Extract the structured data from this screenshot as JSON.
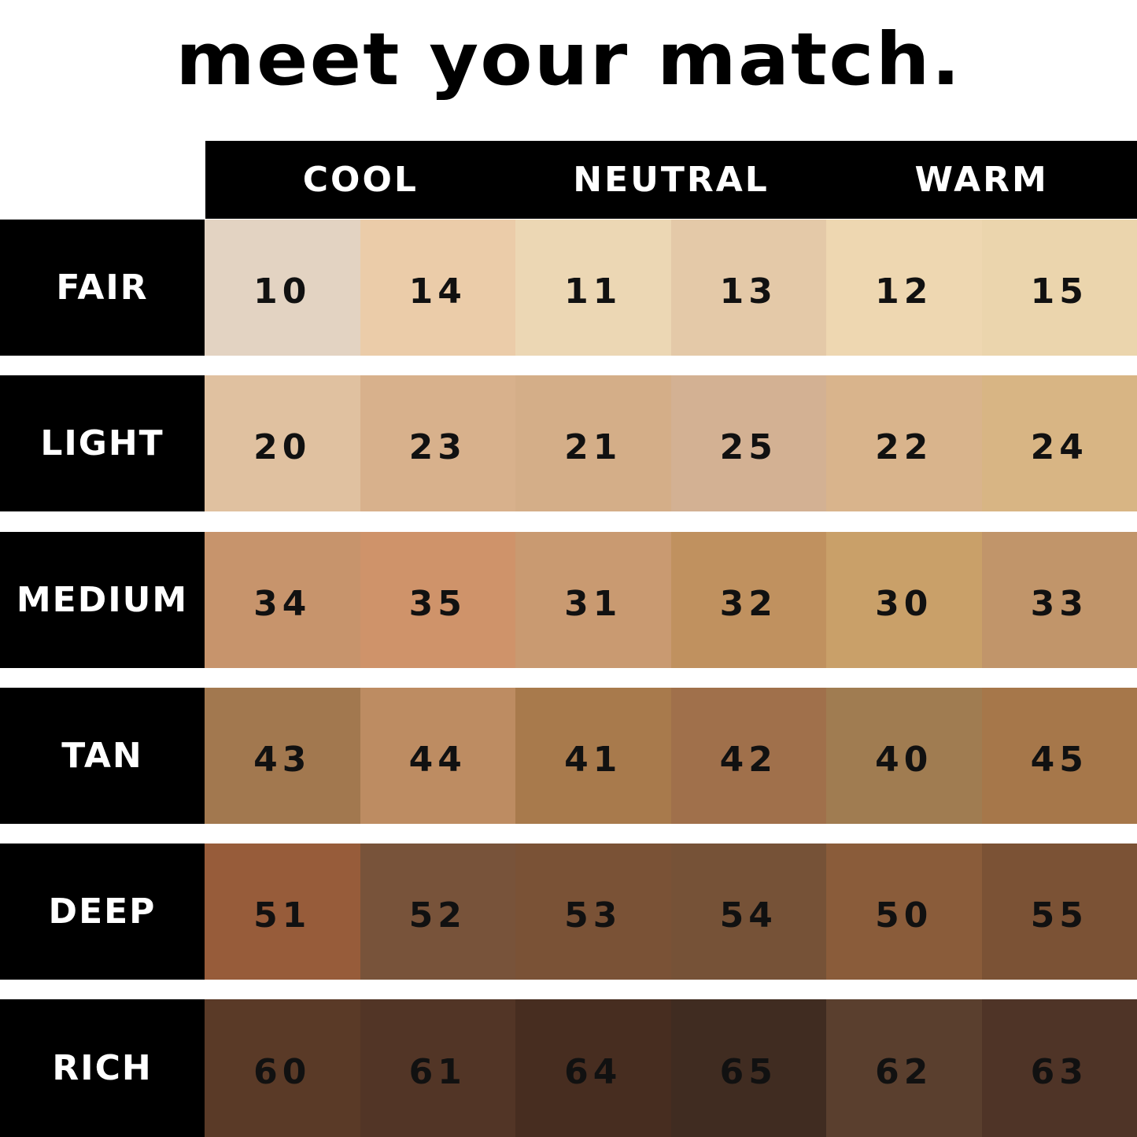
{
  "title": "meet your match.",
  "columns": [
    "COOL",
    "NEUTRAL",
    "WARM"
  ],
  "rows": [
    {
      "label": "FAIR",
      "shades": [
        {
          "num": "10",
          "color": "#e3d3c2"
        },
        {
          "num": "14",
          "color": "#ebcca9"
        },
        {
          "num": "11",
          "color": "#ecd7b4"
        },
        {
          "num": "13",
          "color": "#e4c9a8"
        },
        {
          "num": "12",
          "color": "#eed7b1"
        },
        {
          "num": "15",
          "color": "#ebd5ad"
        }
      ]
    },
    {
      "label": "LIGHT",
      "shades": [
        {
          "num": "20",
          "color": "#e0c1a0"
        },
        {
          "num": "23",
          "color": "#d8b18c"
        },
        {
          "num": "21",
          "color": "#d4ae88"
        },
        {
          "num": "25",
          "color": "#d3b193"
        },
        {
          "num": "22",
          "color": "#d9b48c"
        },
        {
          "num": "24",
          "color": "#d8b584"
        }
      ]
    },
    {
      "label": "MEDIUM",
      "shades": [
        {
          "num": "34",
          "color": "#c7946c"
        },
        {
          "num": "35",
          "color": "#cf936a"
        },
        {
          "num": "31",
          "color": "#c99a71"
        },
        {
          "num": "32",
          "color": "#c0915f"
        },
        {
          "num": "30",
          "color": "#c9a069"
        },
        {
          "num": "33",
          "color": "#c1956a"
        }
      ]
    },
    {
      "label": "TAN",
      "shades": [
        {
          "num": "43",
          "color": "#a2784f"
        },
        {
          "num": "44",
          "color": "#bd8c62"
        },
        {
          "num": "41",
          "color": "#a87a4c"
        },
        {
          "num": "42",
          "color": "#a0704b"
        },
        {
          "num": "40",
          "color": "#a07c51"
        },
        {
          "num": "45",
          "color": "#a6774a"
        }
      ]
    },
    {
      "label": "DEEP",
      "shades": [
        {
          "num": "51",
          "color": "#975c3a"
        },
        {
          "num": "52",
          "color": "#78533a"
        },
        {
          "num": "53",
          "color": "#7a5236"
        },
        {
          "num": "54",
          "color": "#765237"
        },
        {
          "num": "50",
          "color": "#8a5c3a"
        },
        {
          "num": "55",
          "color": "#7b5235"
        }
      ]
    },
    {
      "label": "RICH",
      "shades": [
        {
          "num": "60",
          "color": "#5a3a27"
        },
        {
          "num": "61",
          "color": "#523526"
        },
        {
          "num": "64",
          "color": "#472d20"
        },
        {
          "num": "65",
          "color": "#402c21"
        },
        {
          "num": "62",
          "color": "#5a3f2e"
        },
        {
          "num": "63",
          "color": "#4f3427"
        }
      ]
    }
  ]
}
